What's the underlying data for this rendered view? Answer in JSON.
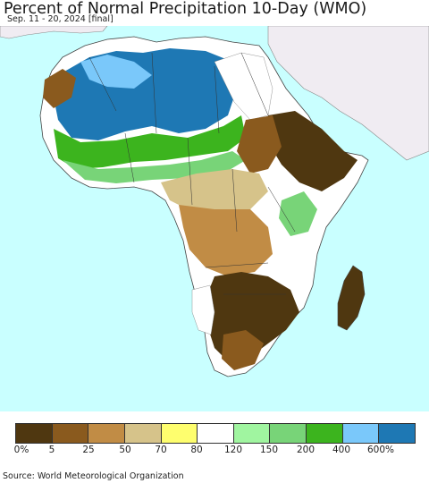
{
  "header": {
    "title": "Percent of Normal Precipitation 10-Day (WMO)",
    "subtitle": "Sep. 11 - 20, 2024 [final]"
  },
  "map": {
    "region": "Africa",
    "ocean_color": "#c9ffff",
    "non_data_land_color": "#f0ecf2"
  },
  "legend": {
    "colors": [
      "#4f3710",
      "#8a5a1e",
      "#c18c45",
      "#d6c38a",
      "#fefe6e",
      "#ffffff",
      "#a0f5a0",
      "#78d478",
      "#3cb41e",
      "#7ac8fa",
      "#1e78b4"
    ],
    "tick_labels": [
      "0%",
      "5",
      "25",
      "50",
      "70",
      "80",
      "120",
      "150",
      "200",
      "400",
      "600%"
    ]
  },
  "footer": {
    "source": "Source: World Meteorological Organization"
  }
}
